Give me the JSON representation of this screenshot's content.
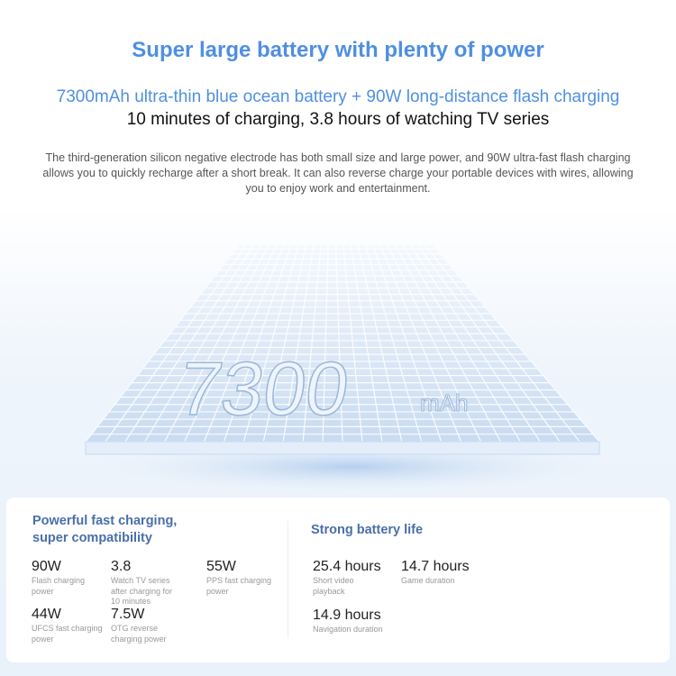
{
  "header": {
    "title": "Super large battery with plenty of power",
    "subtitle": "7300mAh ultra-thin blue ocean battery + 90W long-distance flash charging",
    "tagline": "10 minutes of charging, 3.8 hours of watching TV series",
    "description": "The third-generation silicon negative electrode has both small size and large power, and 90W ultra-fast flash charging allows you to quickly recharge after a short break. It can also reverse charge your portable devices with wires, allowing you to enjoy work and entertainment."
  },
  "battery_graphic": {
    "capacity": "7300",
    "unit": "mAh"
  },
  "charging": {
    "title_line1": "Powerful fast charging,",
    "title_line2": "super compatibility",
    "stats": [
      {
        "value": "90W",
        "label": "Flash charging power"
      },
      {
        "value": "3.8",
        "label": "Watch TV series after charging for 10 minutes"
      },
      {
        "value": "55W",
        "label": "PPS fast charging power"
      },
      {
        "value": "44W",
        "label": "UFCS fast charging power"
      },
      {
        "value": "7.5W",
        "label": "OTG reverse charging power"
      }
    ]
  },
  "battery_life": {
    "title": "Strong battery life",
    "stats": [
      {
        "value": "25.4 hours",
        "label": "Short video playback"
      },
      {
        "value": "14.7 hours",
        "label": "Game duration"
      },
      {
        "value": "14.9 hours",
        "label": "Navigation duration"
      }
    ]
  },
  "colors": {
    "accent": "#4f8fe2",
    "section_title": "#4a6fa8"
  }
}
